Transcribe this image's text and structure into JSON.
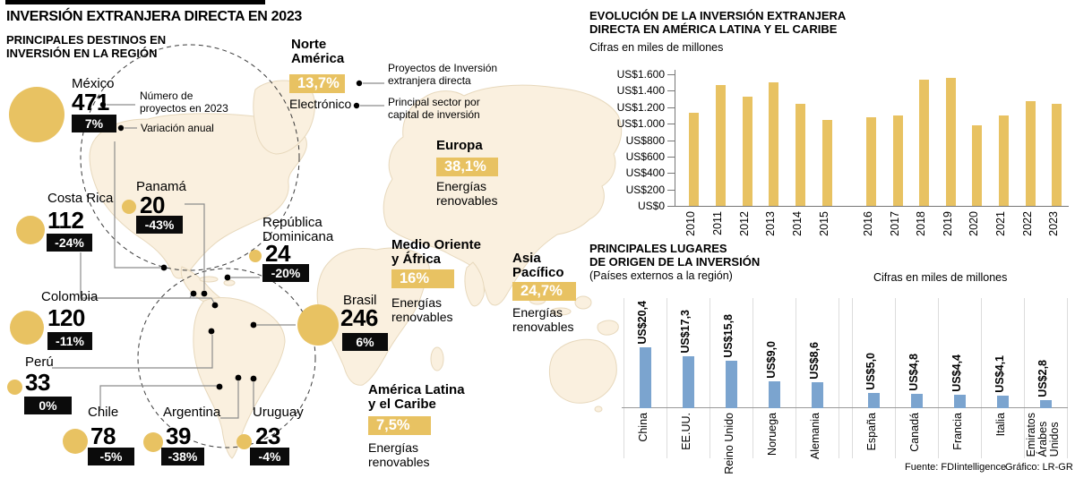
{
  "header": {
    "title": "INVERSIÓN EXTRANJERA DIRECTA EN 2023",
    "subtitle": "PRINCIPALES DESTINOS EN\nINVERSIÓN EN LA REGIÓN"
  },
  "legend": {
    "projects_note": "Número de\nproyectos en 2023",
    "variation_note": "Variación anual",
    "share_note": "Proyectos de Inversión\nextranjera directa",
    "sector_note": "Principal sector por\ncapital de inversión"
  },
  "destinations": [
    {
      "name": "México",
      "projects": "471",
      "change": "7%"
    },
    {
      "name": "Costa Rica",
      "projects": "112",
      "change": "-24%"
    },
    {
      "name": "Panamá",
      "projects": "20",
      "change": "-43%"
    },
    {
      "name": "República\nDominicana",
      "projects": "24",
      "change": "-20%"
    },
    {
      "name": "Colombia",
      "projects": "120",
      "change": "-11%"
    },
    {
      "name": "Perú",
      "projects": "33",
      "change": "0%"
    },
    {
      "name": "Chile",
      "projects": "78",
      "change": "-5%"
    },
    {
      "name": "Argentina",
      "projects": "39",
      "change": "-38%"
    },
    {
      "name": "Uruguay",
      "projects": "23",
      "change": "-4%"
    },
    {
      "name": "Brasil",
      "projects": "246",
      "change": "6%"
    }
  ],
  "regions": [
    {
      "name": "Norte\nAmérica",
      "share": "13,7%",
      "sector": "Electrónico"
    },
    {
      "name": "Europa",
      "share": "38,1%",
      "sector": "Energías\nrenovables"
    },
    {
      "name": "Medio Oriente\ny África",
      "share": "16%",
      "sector": "Energías\nrenovables"
    },
    {
      "name": "Asia\nPacífico",
      "share": "24,7%",
      "sector": "Energías\nrenovables"
    },
    {
      "name": "América Latina\ny el Caribe",
      "share": "7,5%",
      "sector": "Energías\nrenovables"
    }
  ],
  "chart_data": [
    {
      "type": "bar",
      "title": "EVOLUCIÓN DE LA INVERSIÓN EXTRANJERA\nDIRECTA EN AMÉRICA LATINA Y EL CARIBE",
      "subtitle": "Cifras en miles de millones",
      "categories": [
        "2010",
        "2011",
        "2012",
        "2013",
        "2014",
        "2015",
        "2016",
        "2017",
        "2018",
        "2019",
        "2020",
        "2021",
        "2022",
        "2023"
      ],
      "values": [
        1130,
        1470,
        1330,
        1500,
        1240,
        1040,
        1075,
        1100,
        1540,
        1555,
        980,
        1100,
        1270,
        1240
      ],
      "ylim": [
        0,
        1600
      ],
      "ytick_labels": [
        "US$0",
        "US$200",
        "US$400",
        "US$600",
        "US$800",
        "US$1.000",
        "US$1.200",
        "US$1.400",
        "US$1.600"
      ],
      "grid": "off",
      "legend_position": "none",
      "bar_color": "#E8C262"
    },
    {
      "type": "bar",
      "title": "PRINCIPALES LUGARES\nDE ORIGEN DE LA INVERSIÓN",
      "subtitle": "(Países externos a la región)",
      "units_note": "Cifras en miles de millones",
      "categories": [
        "China",
        "EE.UU.",
        "Reino Unido",
        "Noruega",
        "Alemania",
        "España",
        "Canadá",
        "Francia",
        "Italia",
        "Emiratos\nÁrabes\nUnidos"
      ],
      "values": [
        20.4,
        17.3,
        15.8,
        9.0,
        8.6,
        5.0,
        4.8,
        4.4,
        4.1,
        2.8
      ],
      "value_labels": [
        "US$20,4",
        "US$17,3",
        "US$15,8",
        "US$9,0",
        "US$8,6",
        "US$5,0",
        "US$4,8",
        "US$4,4",
        "US$4,1",
        "US$2,8"
      ],
      "ylim": [
        0,
        22
      ],
      "grid": "vertical-separators",
      "legend_position": "none",
      "bar_color": "#7BA4CF"
    }
  ],
  "footer": {
    "source": "Fuente: FDIintelligence",
    "credit": "Gráfico: LR-GR"
  }
}
